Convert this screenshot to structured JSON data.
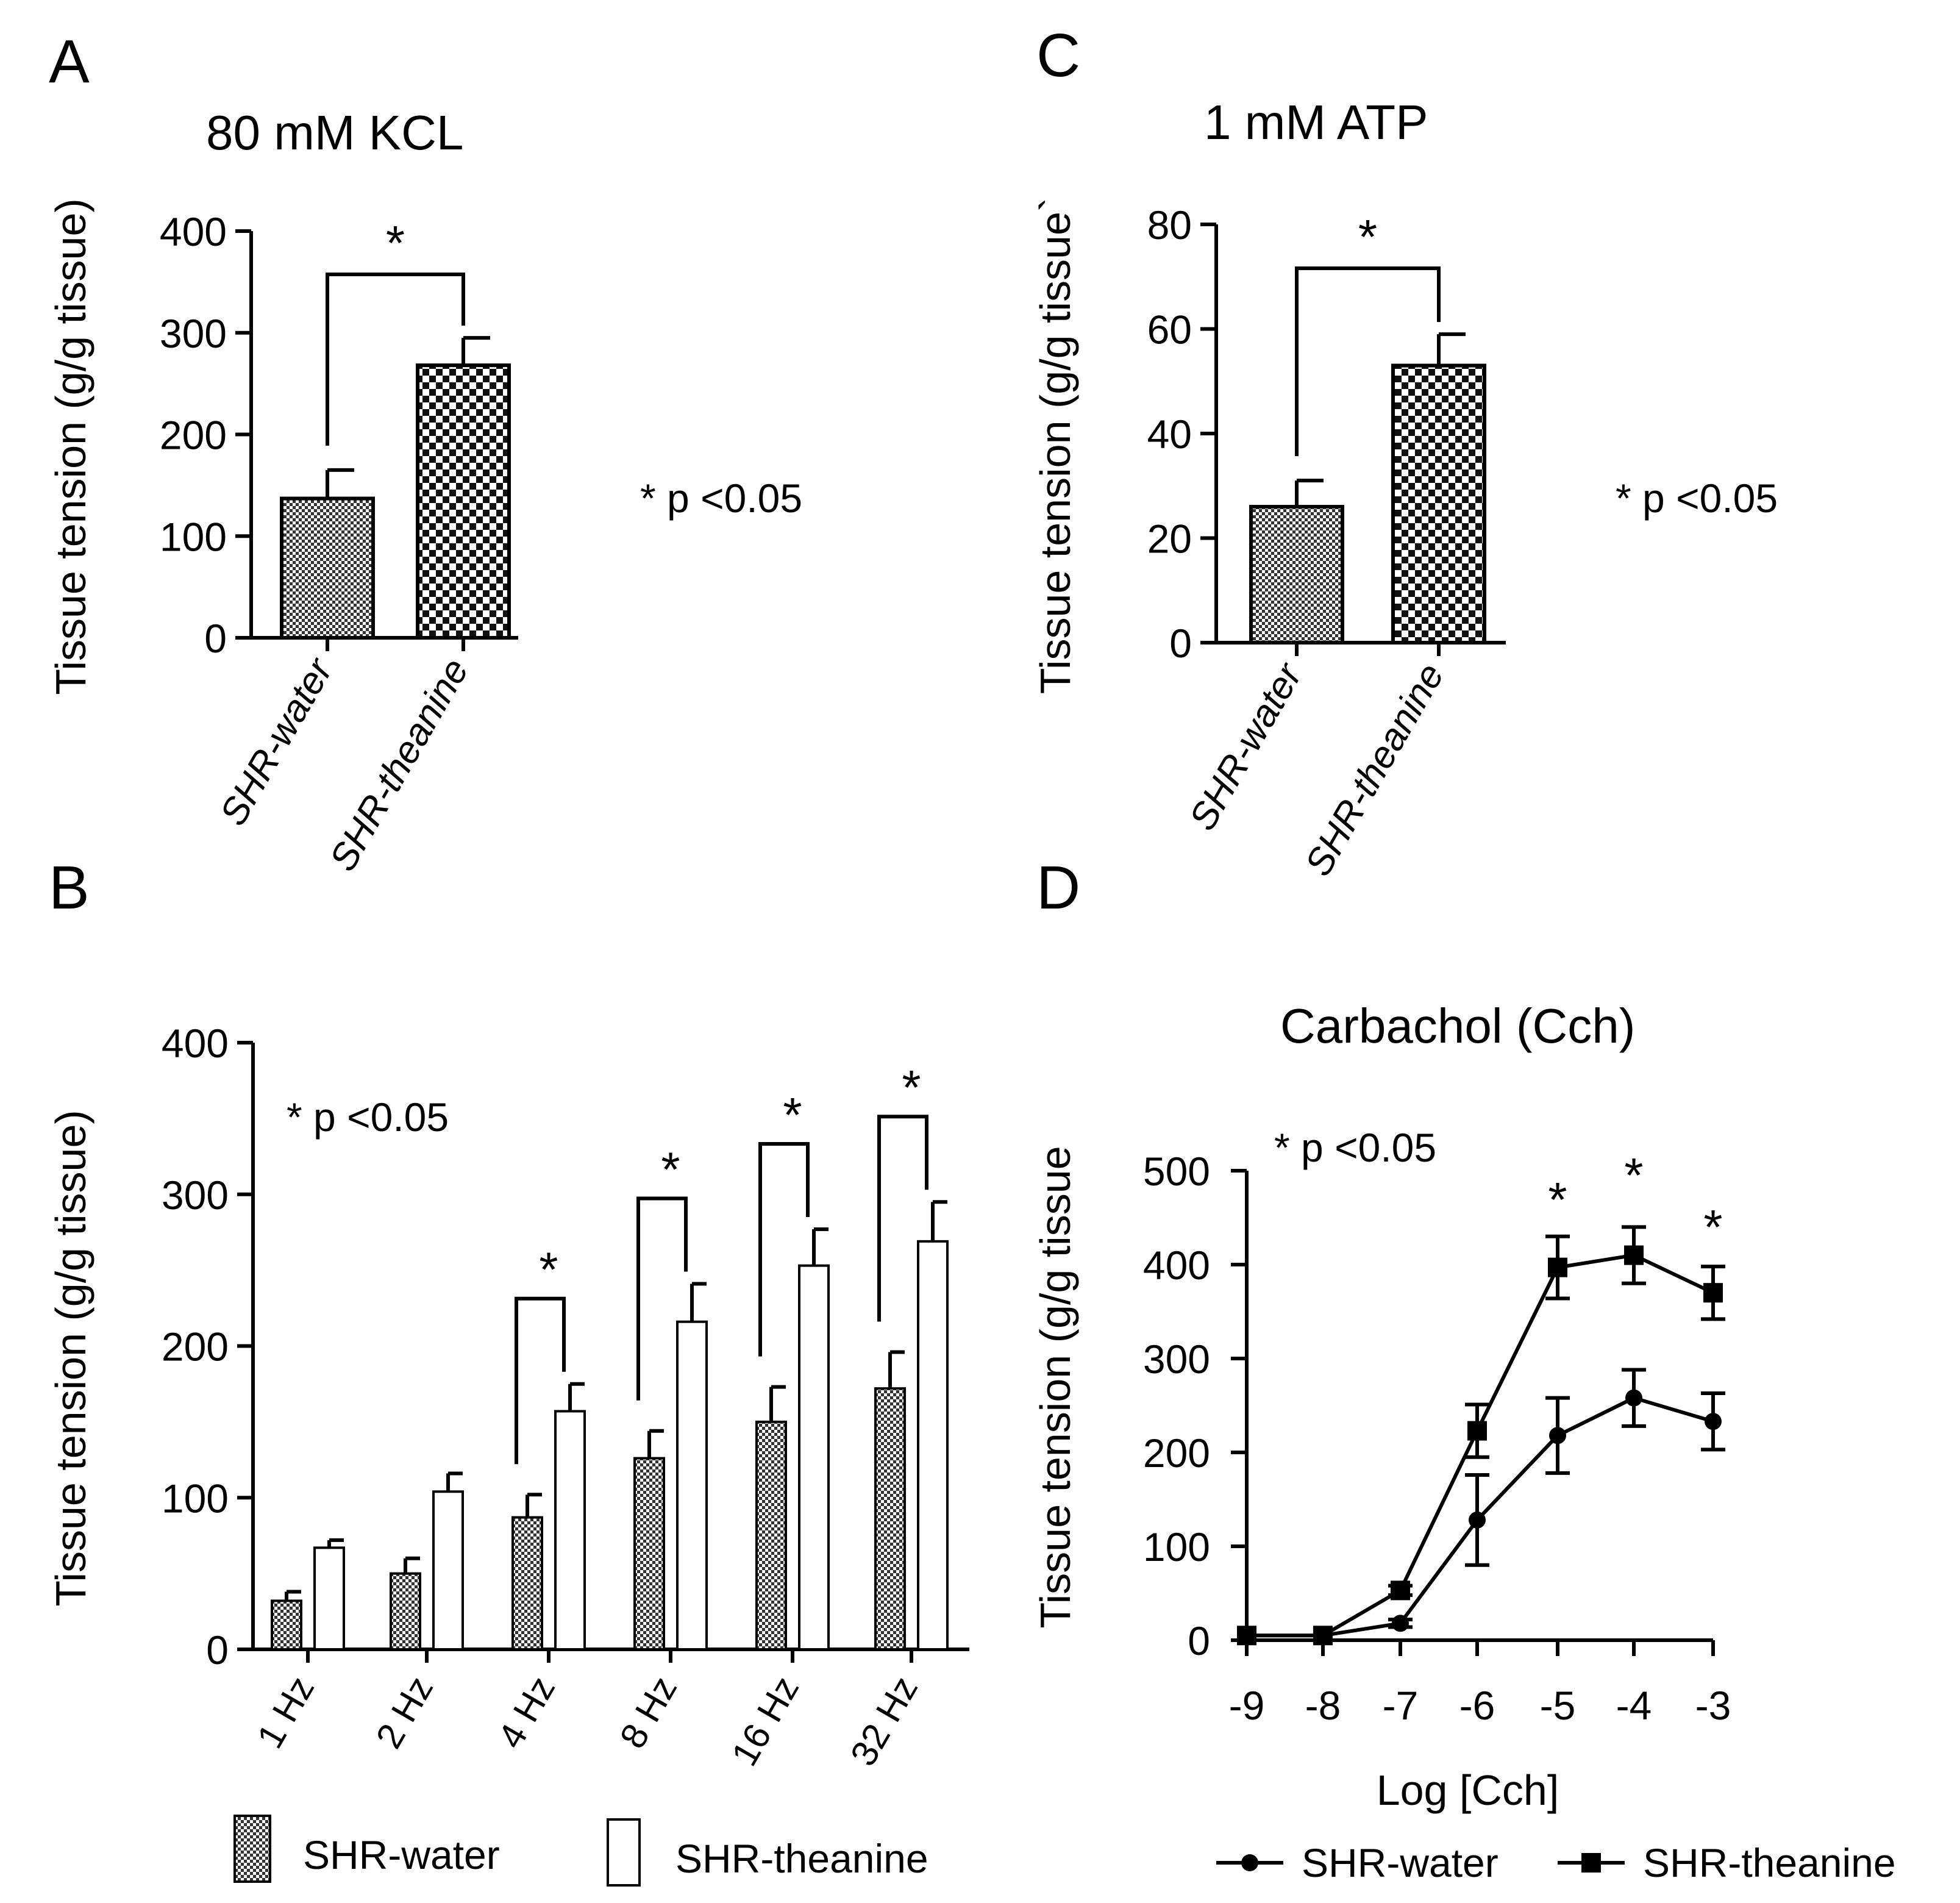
{
  "chart_data": [
    {
      "panel": "A",
      "type": "bar",
      "title": "80 mM KCL",
      "ylabel": "Tissue tension (g/g tissue)",
      "ylim": [
        0,
        400
      ],
      "yticks": [
        0,
        100,
        200,
        300,
        400
      ],
      "categories": [
        "SHR-water",
        "SHR-theanine"
      ],
      "values": [
        137,
        268
      ],
      "errors": [
        28,
        27
      ],
      "significance": "*",
      "note": "* p <0.05"
    },
    {
      "panel": "B",
      "type": "bar",
      "ylabel": "Tissue tension (g/g tissue)",
      "ylim": [
        0,
        400
      ],
      "yticks": [
        0,
        100,
        200,
        300,
        400
      ],
      "categories": [
        "1 Hz",
        "2 Hz",
        "4 Hz",
        "8 Hz",
        "16 Hz",
        "32 Hz"
      ],
      "series": [
        {
          "name": "SHR-water",
          "values": [
            32,
            50,
            87,
            126,
            150,
            172
          ],
          "errors": [
            6,
            10,
            15,
            18,
            23,
            24
          ]
        },
        {
          "name": "SHR-theanine",
          "values": [
            67,
            104,
            157,
            216,
            253,
            269
          ],
          "errors": [
            5,
            12,
            18,
            25,
            24,
            26
          ]
        }
      ],
      "significance": [
        "",
        "",
        "*",
        "*",
        "*",
        "*"
      ],
      "note": "* p <0.05",
      "legend": [
        "SHR-water",
        "SHR-theanine"
      ]
    },
    {
      "panel": "C",
      "type": "bar",
      "title": "1 mM ATP",
      "ylabel": "Tissue tension (g/g tissue`",
      "ylim": [
        0,
        80
      ],
      "yticks": [
        0,
        20,
        40,
        60,
        80
      ],
      "categories": [
        "SHR-water",
        "SHR-theanine"
      ],
      "values": [
        26,
        53
      ],
      "errors": [
        5,
        6
      ],
      "significance": "*",
      "note": "* p <0.05"
    },
    {
      "panel": "D",
      "type": "line",
      "title": "Carbachol (Cch)",
      "xlabel": "Log [Cch]",
      "ylabel": "Tissue tension (g/g tissue",
      "x": [
        -9,
        -8,
        -7,
        -6,
        -5,
        -4,
        -3
      ],
      "xticks": [
        "-9",
        "-8",
        "-7",
        "-6",
        "-5",
        "-4",
        "-3"
      ],
      "ylim": [
        0,
        500
      ],
      "yticks": [
        0,
        100,
        200,
        300,
        400,
        500
      ],
      "series": [
        {
          "name": "SHR-water",
          "marker": "circle",
          "values": [
            5,
            5,
            18,
            128,
            218,
            258,
            233
          ],
          "errors": [
            0,
            0,
            4,
            48,
            40,
            30,
            30
          ]
        },
        {
          "name": "SHR-theanine",
          "marker": "square",
          "values": [
            5,
            5,
            53,
            223,
            397,
            410,
            370
          ],
          "errors": [
            0,
            0,
            5,
            28,
            33,
            30,
            28
          ]
        }
      ],
      "significance": [
        "",
        "",
        "",
        "",
        "*",
        "*",
        "*"
      ],
      "note": "* p <0.05",
      "legend": [
        "SHR-water",
        "SHR-theanine"
      ]
    }
  ]
}
